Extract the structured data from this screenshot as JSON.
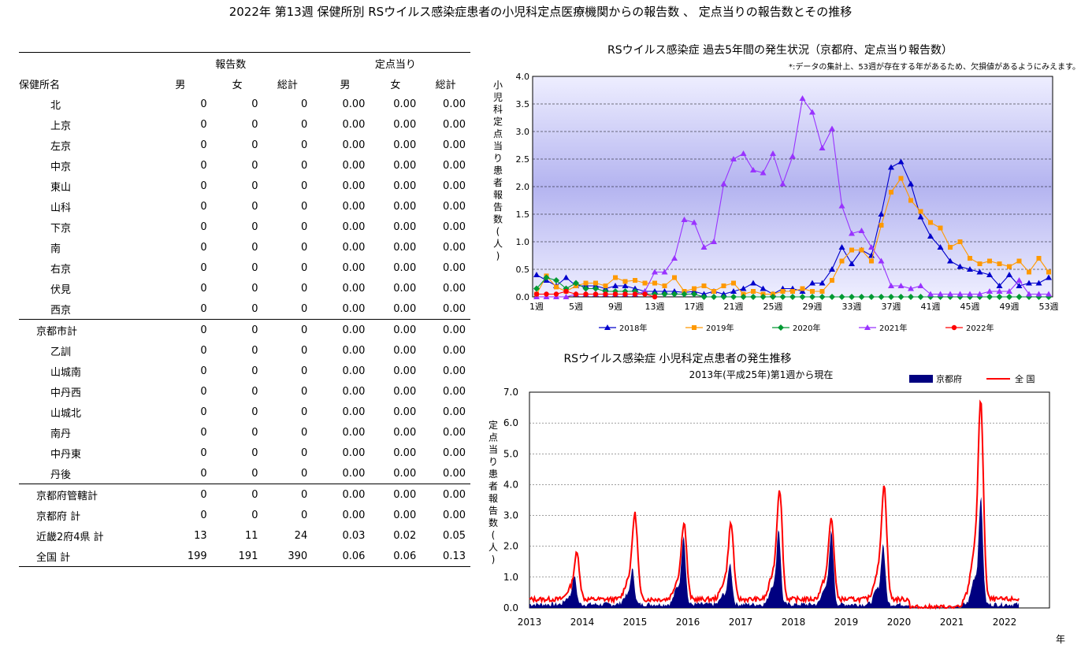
{
  "title": "2022年 第13週 保健所別 RSウイルス感染症患者の小児科定点医療機関からの報告数 、 定点当りの報告数とその推移",
  "table": {
    "group_headers": [
      "報告数",
      "定点当り"
    ],
    "col_headers": [
      "保健所名",
      "男",
      "女",
      "総計",
      "男",
      "女",
      "総計"
    ],
    "rows": [
      {
        "name": "北",
        "v": [
          "0",
          "0",
          "0",
          "0.00",
          "0.00",
          "0.00"
        ]
      },
      {
        "name": "上京",
        "v": [
          "0",
          "0",
          "0",
          "0.00",
          "0.00",
          "0.00"
        ]
      },
      {
        "name": "左京",
        "v": [
          "0",
          "0",
          "0",
          "0.00",
          "0.00",
          "0.00"
        ]
      },
      {
        "name": "中京",
        "v": [
          "0",
          "0",
          "0",
          "0.00",
          "0.00",
          "0.00"
        ]
      },
      {
        "name": "東山",
        "v": [
          "0",
          "0",
          "0",
          "0.00",
          "0.00",
          "0.00"
        ]
      },
      {
        "name": "山科",
        "v": [
          "0",
          "0",
          "0",
          "0.00",
          "0.00",
          "0.00"
        ]
      },
      {
        "name": "下京",
        "v": [
          "0",
          "0",
          "0",
          "0.00",
          "0.00",
          "0.00"
        ]
      },
      {
        "name": "南",
        "v": [
          "0",
          "0",
          "0",
          "0.00",
          "0.00",
          "0.00"
        ]
      },
      {
        "name": "右京",
        "v": [
          "0",
          "0",
          "0",
          "0.00",
          "0.00",
          "0.00"
        ]
      },
      {
        "name": "伏見",
        "v": [
          "0",
          "0",
          "0",
          "0.00",
          "0.00",
          "0.00"
        ]
      },
      {
        "name": "西京",
        "v": [
          "0",
          "0",
          "0",
          "0.00",
          "0.00",
          "0.00"
        ]
      },
      {
        "name": "京都市計",
        "v": [
          "0",
          "0",
          "0",
          "0.00",
          "0.00",
          "0.00"
        ]
      },
      {
        "name": "乙訓",
        "v": [
          "0",
          "0",
          "0",
          "0.00",
          "0.00",
          "0.00"
        ]
      },
      {
        "name": "山城南",
        "v": [
          "0",
          "0",
          "0",
          "0.00",
          "0.00",
          "0.00"
        ]
      },
      {
        "name": "中丹西",
        "v": [
          "0",
          "0",
          "0",
          "0.00",
          "0.00",
          "0.00"
        ]
      },
      {
        "name": "山城北",
        "v": [
          "0",
          "0",
          "0",
          "0.00",
          "0.00",
          "0.00"
        ]
      },
      {
        "name": "南丹",
        "v": [
          "0",
          "0",
          "0",
          "0.00",
          "0.00",
          "0.00"
        ]
      },
      {
        "name": "中丹東",
        "v": [
          "0",
          "0",
          "0",
          "0.00",
          "0.00",
          "0.00"
        ]
      },
      {
        "name": "丹後",
        "v": [
          "0",
          "0",
          "0",
          "0.00",
          "0.00",
          "0.00"
        ]
      },
      {
        "name": "京都府管轄計",
        "v": [
          "0",
          "0",
          "0",
          "0.00",
          "0.00",
          "0.00"
        ]
      },
      {
        "name": "京都府 計",
        "v": [
          "0",
          "0",
          "0",
          "0.00",
          "0.00",
          "0.00"
        ]
      },
      {
        "name": "近畿2府4県 計",
        "v": [
          "13",
          "11",
          "24",
          "0.03",
          "0.02",
          "0.05"
        ]
      },
      {
        "name": "全国 計",
        "v": [
          "199",
          "191",
          "390",
          "0.06",
          "0.06",
          "0.13"
        ]
      }
    ]
  },
  "chart_data": [
    {
      "type": "line",
      "title": "RSウイルス感染症 過去5年間の発生状況（京都府、定点当り報告数）",
      "subtitle": "*:データの集計上、53週が存在する年があるため、欠損値があるようにみえます。",
      "ylabel": "小児科定点当り患者報告数（人）",
      "ylim": [
        0,
        4.0
      ],
      "y_ticks": [
        "0.0",
        "0.5",
        "1.0",
        "1.5",
        "2.0",
        "2.5",
        "3.0",
        "3.5",
        "4.0"
      ],
      "x_ticks": [
        "1週",
        "5週",
        "9週",
        "13週",
        "17週",
        "21週",
        "25週",
        "29週",
        "33週",
        "37週",
        "41週",
        "45週",
        "49週",
        "53週"
      ],
      "grid": true,
      "legend_position": "bottom",
      "series": [
        {
          "name": "2018年",
          "color": "#0000CC",
          "marker": "triangle",
          "values": [
            0.4,
            0.3,
            0.2,
            0.35,
            0.2,
            0.2,
            0.2,
            0.15,
            0.2,
            0.2,
            0.15,
            0.1,
            0.1,
            0.1,
            0.1,
            0.08,
            0.1,
            0.05,
            0.1,
            0.05,
            0.1,
            0.15,
            0.25,
            0.15,
            0.05,
            0.15,
            0.15,
            0.1,
            0.25,
            0.25,
            0.5,
            0.9,
            0.6,
            0.85,
            0.75,
            1.5,
            2.35,
            2.45,
            2.05,
            1.45,
            1.1,
            0.9,
            0.65,
            0.55,
            0.5,
            0.45,
            0.4,
            0.2,
            0.4,
            0.2,
            0.25,
            0.25,
            0.35
          ]
        },
        {
          "name": "2019年",
          "color": "#FF9900",
          "marker": "square",
          "values": [
            0.05,
            0.38,
            0.18,
            0.1,
            0.2,
            0.25,
            0.25,
            0.2,
            0.35,
            0.28,
            0.3,
            0.25,
            0.25,
            0.2,
            0.35,
            0.1,
            0.15,
            0.2,
            0.1,
            0.2,
            0.25,
            0.05,
            0.1,
            0.05,
            0.05,
            0.1,
            0.1,
            0.15,
            0.1,
            0.1,
            0.3,
            0.65,
            0.85,
            0.85,
            0.65,
            1.3,
            1.9,
            2.15,
            1.75,
            1.55,
            1.35,
            1.25,
            0.9,
            1.0,
            0.7,
            0.6,
            0.65,
            0.6,
            0.55,
            0.65,
            0.45,
            0.7,
            0.45
          ]
        },
        {
          "name": "2020年",
          "color": "#009933",
          "marker": "diamond",
          "values": [
            0.15,
            0.35,
            0.3,
            0.15,
            0.25,
            0.15,
            0.15,
            0.1,
            0.1,
            0.1,
            0.1,
            0.05,
            0.05,
            0.05,
            0.05,
            0.05,
            0.05,
            0.0,
            0.0,
            0.0,
            0.0,
            0.0,
            0.0,
            0.0,
            0.0,
            0.0,
            0.0,
            0.0,
            0.0,
            0.0,
            0.0,
            0.0,
            0.0,
            0.0,
            0.0,
            0.0,
            0.0,
            0.0,
            0.0,
            0.0,
            0.0,
            0.0,
            0.0,
            0.0,
            0.0,
            0.0,
            0.0,
            0.0,
            0.0,
            0.0,
            0.0,
            0.0,
            0.0
          ]
        },
        {
          "name": "2021年",
          "color": "#9933FF",
          "marker": "triangle",
          "values": [
            0.0,
            0.0,
            0.0,
            0.0,
            0.05,
            0.05,
            0.05,
            0.05,
            0.05,
            0.05,
            0.05,
            0.1,
            0.45,
            0.45,
            0.7,
            1.4,
            1.35,
            0.9,
            1.0,
            2.05,
            2.5,
            2.6,
            2.3,
            2.25,
            2.6,
            2.05,
            2.55,
            3.6,
            3.35,
            2.7,
            3.05,
            1.65,
            1.15,
            1.2,
            0.9,
            0.65,
            0.2,
            0.2,
            0.15,
            0.2,
            0.05,
            0.05,
            0.05,
            0.05,
            0.05,
            0.05,
            0.1,
            0.1,
            0.1,
            0.3,
            0.05,
            0.05,
            0.05
          ]
        },
        {
          "name": "2022年",
          "color": "#FF0000",
          "marker": "circle",
          "values": [
            0.05,
            0.05,
            0.05,
            0.1,
            0.05,
            0.05,
            0.05,
            0.05,
            0.05,
            0.05,
            0.05,
            0.05,
            0.0
          ]
        }
      ]
    },
    {
      "type": "area",
      "title": "RSウイルス感染症 小児科定点患者の発生推移",
      "subtitle": "2013年(平成25年)第1週から現在",
      "ylabel": "定点当り患者報告数（人）",
      "xlabel": "年",
      "ylim": [
        0,
        7.0
      ],
      "y_ticks": [
        "0.0",
        "1.0",
        "2.0",
        "3.0",
        "4.0",
        "5.0",
        "6.0",
        "7.0"
      ],
      "x_ticks": [
        "2013",
        "2014",
        "2015",
        "2016",
        "2017",
        "2018",
        "2019",
        "2020",
        "2021",
        "2022"
      ],
      "legend_position": "top-right",
      "series": [
        {
          "name": "京都府",
          "color": "#000080",
          "style": "area",
          "peaks": [
            [
              2013.85,
              0.9
            ],
            [
              2014.95,
              1.1
            ],
            [
              2015.92,
              2.2
            ],
            [
              2016.8,
              1.3
            ],
            [
              2017.72,
              2.4
            ],
            [
              2018.72,
              2.3
            ],
            [
              2019.7,
              1.9
            ],
            [
              2021.55,
              3.4
            ]
          ]
        },
        {
          "name": "全 国",
          "color": "#FF0000",
          "style": "line",
          "peaks": [
            [
              2013.9,
              1.4
            ],
            [
              2015.0,
              2.6
            ],
            [
              2015.93,
              2.35
            ],
            [
              2016.82,
              2.3
            ],
            [
              2017.74,
              3.35
            ],
            [
              2018.72,
              2.45
            ],
            [
              2019.72,
              3.45
            ],
            [
              2021.55,
              6.0
            ]
          ]
        }
      ]
    }
  ]
}
